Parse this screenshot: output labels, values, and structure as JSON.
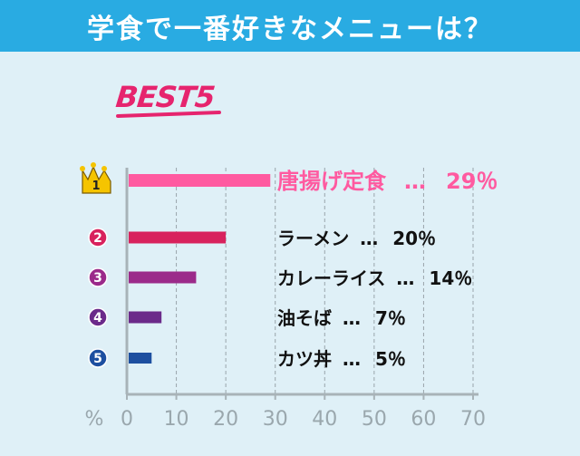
{
  "header": {
    "title": "学食で一番好きなメニューは？"
  },
  "best_label": "BEST5",
  "chart_data": {
    "type": "bar",
    "orientation": "horizontal",
    "categories": [
      "唐揚げ定食",
      "ラーメン",
      "カレーライス",
      "油そば",
      "カツ丼"
    ],
    "ranks": [
      "1",
      "2",
      "3",
      "4",
      "5"
    ],
    "values": [
      29,
      20,
      14,
      7,
      5
    ],
    "value_labels": [
      "29％",
      "20％",
      "14％",
      "7％",
      "5％"
    ],
    "separator": "…",
    "axis_unit": "%",
    "xlim": [
      0,
      70
    ],
    "xticks": [
      "0",
      "10",
      "20",
      "30",
      "40",
      "50",
      "60",
      "70"
    ],
    "grid": true,
    "colors": [
      "#ff5aa0",
      "#d8225d",
      "#9b2a8a",
      "#6b2a8a",
      "#1d4fa0"
    ],
    "label_colors": [
      "#ff5aa0",
      "#111111",
      "#111111",
      "#111111",
      "#111111"
    ],
    "crown_color": "#f5c400"
  }
}
